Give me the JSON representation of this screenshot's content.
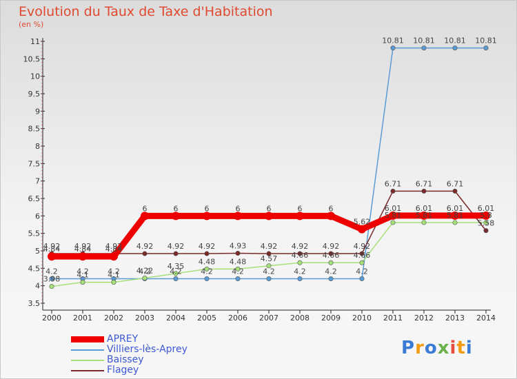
{
  "title": "Evolution du Taux de Taxe d'Habitation",
  "subtitle": "(en %)",
  "logo": "Proxiti",
  "chart_data": {
    "type": "line",
    "x": [
      "2000",
      "2001",
      "2002",
      "2003",
      "2004",
      "2005",
      "2006",
      "2007",
      "2008",
      "2009",
      "2010",
      "2011",
      "2012",
      "2013",
      "2014"
    ],
    "ylim": [
      3.5,
      11
    ],
    "yticks": [
      "3.5",
      "4",
      "4.5",
      "5",
      "5.5",
      "6",
      "6.5",
      "7",
      "7.5",
      "8",
      "8.5",
      "9",
      "9.5",
      "10",
      "10.5",
      "11"
    ],
    "grid": false,
    "legend_position": "bottom-left",
    "series": [
      {
        "name": "APREY",
        "color": "#ee0000",
        "values": [
          4.84,
          4.84,
          4.84,
          6,
          6,
          6,
          6,
          6,
          6,
          6,
          5.62,
          6.01,
          6.01,
          6.01,
          6.01
        ],
        "labels": [
          "4.84",
          "4.84",
          "4.84",
          "6",
          "6",
          "6",
          "6",
          "6",
          "6",
          "6",
          "5.62",
          "6.01",
          "6.01",
          "6.01",
          "6.01"
        ]
      },
      {
        "name": "Villiers-lès-Aprey",
        "color": "#5b9bd5",
        "values": [
          4.2,
          4.2,
          4.2,
          4.2,
          4.2,
          4.2,
          4.2,
          4.2,
          4.2,
          4.2,
          4.2,
          10.81,
          10.81,
          10.81,
          10.81
        ],
        "labels": [
          "4.2",
          "4.2",
          "4.2",
          "4.2",
          "4.2",
          "4.2",
          "4.2",
          "4.2",
          "4.2",
          "4.2",
          "4.2",
          "10.81",
          "10.81",
          "10.81",
          "10.81"
        ]
      },
      {
        "name": "Baissey",
        "color": "#a6e07a",
        "values": [
          3.98,
          4.1,
          4.1,
          4.22,
          4.35,
          4.48,
          4.48,
          4.57,
          4.66,
          4.66,
          4.66,
          5.81,
          5.81,
          5.81,
          5.81
        ],
        "labels": [
          "3.98",
          "4.1",
          "4.1",
          "4.22",
          "4.35",
          "4.48",
          "4.48",
          "4.57",
          "4.66",
          "4.66",
          "4.66",
          "5.81",
          "5.81",
          "5.81",
          "5.8"
        ]
      },
      {
        "name": "Flagey",
        "color": "#7a2a2a",
        "values": [
          4.92,
          4.92,
          4.92,
          4.92,
          4.92,
          4.92,
          4.93,
          4.92,
          4.92,
          4.92,
          4.92,
          6.71,
          6.71,
          6.71,
          5.58
        ],
        "labels": [
          "4.92",
          "4.92",
          "4.92",
          "4.92",
          "4.92",
          "4.92",
          "4.93",
          "4.92",
          "4.92",
          "4.92",
          "4.92",
          "6.71",
          "6.71",
          "6.71",
          "5.58"
        ]
      }
    ]
  }
}
